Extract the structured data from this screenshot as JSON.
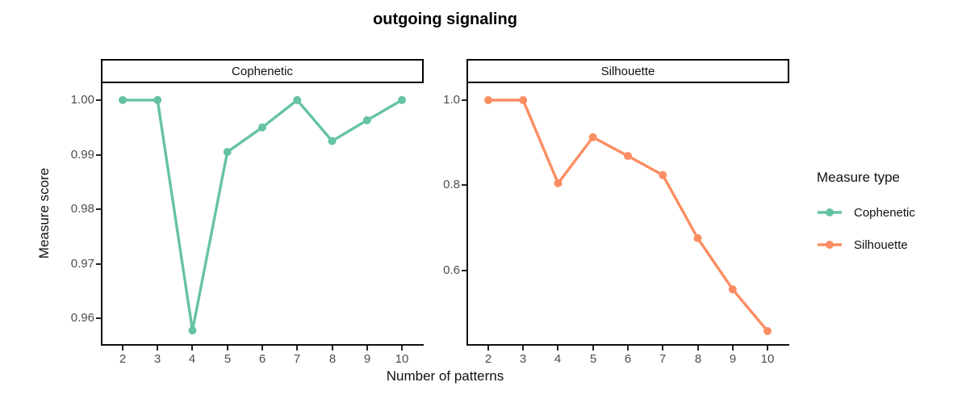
{
  "title": "outgoing signaling",
  "axes": {
    "x_label": "Number of patterns",
    "y_label": "Measure score"
  },
  "legend": {
    "title": "Measure type",
    "entries": [
      {
        "label": "Cophenetic",
        "color": "#66C2A5"
      },
      {
        "label": "Silhouette",
        "color": "#FC8D62"
      }
    ]
  },
  "colors": {
    "cophenetic": "#66C2A5",
    "silhouette": "#FC8D62",
    "axis_line": "#111111",
    "tick_label": "#4d4d4d",
    "strip_border": "#000000",
    "background": "#ffffff"
  },
  "chart_data": {
    "type": "line",
    "title": "outgoing signaling",
    "xlabel": "Number of patterns",
    "ylabel": "Measure score",
    "grid": false,
    "legend_position": "right",
    "x": [
      2,
      3,
      4,
      5,
      6,
      7,
      8,
      9,
      10
    ],
    "x_ticks": [
      "2",
      "3",
      "4",
      "5",
      "6",
      "7",
      "8",
      "9",
      "10"
    ],
    "xlim": [
      1.376,
      10.624
    ],
    "facets": [
      {
        "label": "Cophenetic",
        "series": "Cophenetic",
        "color": "#66C2A5",
        "values": [
          1.0,
          1.0,
          0.9578,
          0.9905,
          0.995,
          1.0,
          0.9925,
          0.9963,
          1.0
        ],
        "ylim": [
          0.9553,
          1.0031
        ],
        "y_ticks": [
          {
            "value": 1.0,
            "label": "1.00"
          },
          {
            "value": 0.99,
            "label": "0.99"
          },
          {
            "value": 0.98,
            "label": "0.98"
          },
          {
            "value": 0.97,
            "label": "0.97"
          },
          {
            "value": 0.96,
            "label": "0.96"
          }
        ]
      },
      {
        "label": "Silhouette",
        "series": "Silhouette",
        "color": "#FC8D62",
        "values": [
          1.0,
          1.0,
          0.805,
          0.913,
          0.869,
          0.824,
          0.676,
          0.556,
          0.458
        ],
        "ylim": [
          0.4275,
          1.0398
        ],
        "y_ticks": [
          {
            "value": 1.0,
            "label": "1.0"
          },
          {
            "value": 0.8,
            "label": "0.8"
          },
          {
            "value": 0.6,
            "label": "0.6"
          }
        ]
      }
    ]
  }
}
